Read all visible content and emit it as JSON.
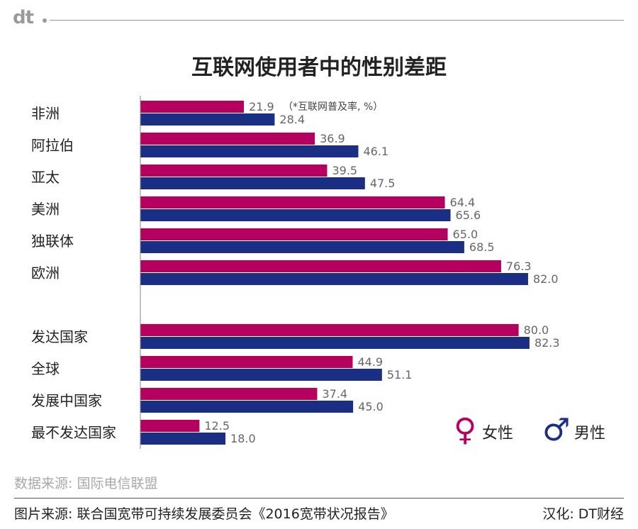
{
  "brand": {
    "logo": "dt"
  },
  "chart_data": {
    "type": "bar",
    "orientation": "horizontal",
    "title": "互联网使用者中的性别差距",
    "note": "（*互联网普及率, %）",
    "categories": [
      "非洲",
      "阿拉伯",
      "亚太",
      "美洲",
      "独联体",
      "欧洲",
      "发达国家",
      "全球",
      "发展中国家",
      "最不发达国家"
    ],
    "group_break_after": "欧洲",
    "series": [
      {
        "name": "女性",
        "color": "#b5005f",
        "values": [
          21.9,
          36.9,
          39.5,
          64.4,
          65.0,
          76.3,
          80.0,
          44.9,
          37.4,
          12.5
        ]
      },
      {
        "name": "男性",
        "color": "#1a2e83",
        "values": [
          28.4,
          46.1,
          47.5,
          65.6,
          68.5,
          82.0,
          82.3,
          51.1,
          45.0,
          18.0
        ]
      }
    ],
    "xlim": [
      0,
      100
    ],
    "grid": false,
    "legend_position": "bottom-right"
  },
  "legend": {
    "female": {
      "symbol": "♀",
      "label": "女性",
      "color": "#b5005f"
    },
    "male": {
      "symbol": "♂",
      "label": "男性",
      "color": "#1a2e83"
    }
  },
  "footer": {
    "data_source": "数据来源: 国际电信联盟",
    "image_source": "图片来源: 联合国宽带可持续发展委员会《2016宽带状况报告》",
    "localized_by": "汉化: DT财经"
  }
}
